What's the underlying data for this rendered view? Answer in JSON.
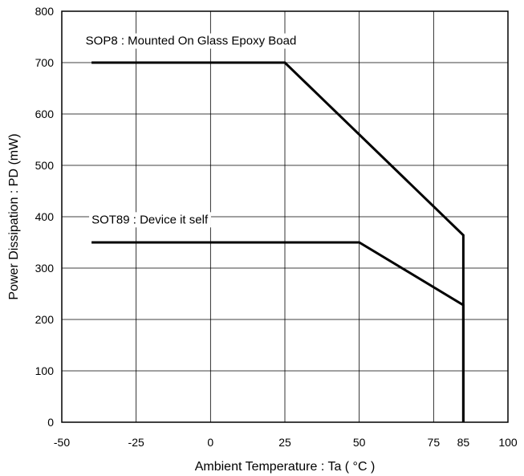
{
  "chart_data": {
    "type": "line",
    "title": "",
    "xlabel": "Ambient Temperature : Ta ( °C )",
    "ylabel": "Power Dissipation : PD (mW)",
    "xlim": [
      -50,
      100
    ],
    "ylim": [
      0,
      800
    ],
    "xticks": [
      "-50",
      "-25",
      "0",
      "25",
      "50",
      "75",
      "85",
      "100"
    ],
    "xtick_values": [
      -50,
      -25,
      0,
      25,
      50,
      75,
      85,
      100
    ],
    "yticks": [
      "0",
      "100",
      "200",
      "300",
      "400",
      "500",
      "600",
      "700",
      "800"
    ],
    "ytick_values": [
      0,
      100,
      200,
      300,
      400,
      500,
      600,
      700,
      800
    ],
    "grid": true,
    "series": [
      {
        "label": "SOP8 : Mounted On Glass Epoxy Boad",
        "label_anchor": [
          -42,
          735
        ],
        "color": "#000000",
        "points": [
          [
            -40,
            700
          ],
          [
            25,
            700
          ],
          [
            85,
            364
          ],
          [
            85,
            0
          ]
        ]
      },
      {
        "label": "SOT89 : Device it self",
        "label_anchor": [
          -40,
          387
        ],
        "color": "#000000",
        "points": [
          [
            -40,
            350
          ],
          [
            50,
            350
          ],
          [
            85,
            228
          ],
          [
            85,
            0
          ]
        ]
      }
    ]
  }
}
